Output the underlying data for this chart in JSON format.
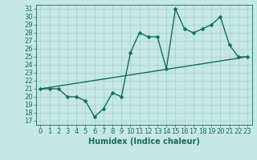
{
  "xlabel": "Humidex (Indice chaleur)",
  "background_color": "#c5e8e2",
  "line_color": "#1a6b5a",
  "grid_color": "#a8cec8",
  "xlim": [
    -0.5,
    23.5
  ],
  "ylim": [
    16.5,
    31.5
  ],
  "yticks": [
    17,
    18,
    19,
    20,
    21,
    22,
    23,
    24,
    25,
    26,
    27,
    28,
    29,
    30,
    31
  ],
  "xticks": [
    0,
    1,
    2,
    3,
    4,
    5,
    6,
    7,
    8,
    9,
    10,
    11,
    12,
    13,
    14,
    15,
    16,
    17,
    18,
    19,
    20,
    21,
    22,
    23
  ],
  "line1_x": [
    0,
    1,
    2,
    3,
    4,
    5,
    6,
    7,
    8,
    9,
    10,
    11,
    12,
    13,
    14,
    15,
    16,
    17,
    18,
    19,
    20,
    21,
    22,
    23
  ],
  "line1_y": [
    21.0,
    21.0,
    21.0,
    20.0,
    20.0,
    19.5,
    17.5,
    18.5,
    20.5,
    20.0,
    25.5,
    28.0,
    27.5,
    27.5,
    23.5,
    31.0,
    28.5,
    28.0,
    28.5,
    29.0,
    30.0,
    26.5,
    25.0,
    25.0
  ],
  "line2_x": [
    0,
    23
  ],
  "line2_y": [
    21.0,
    25.0
  ],
  "font_size_label": 7,
  "font_size_tick": 6,
  "marker_size": 2.5,
  "line_width": 1.0,
  "marker": "D"
}
